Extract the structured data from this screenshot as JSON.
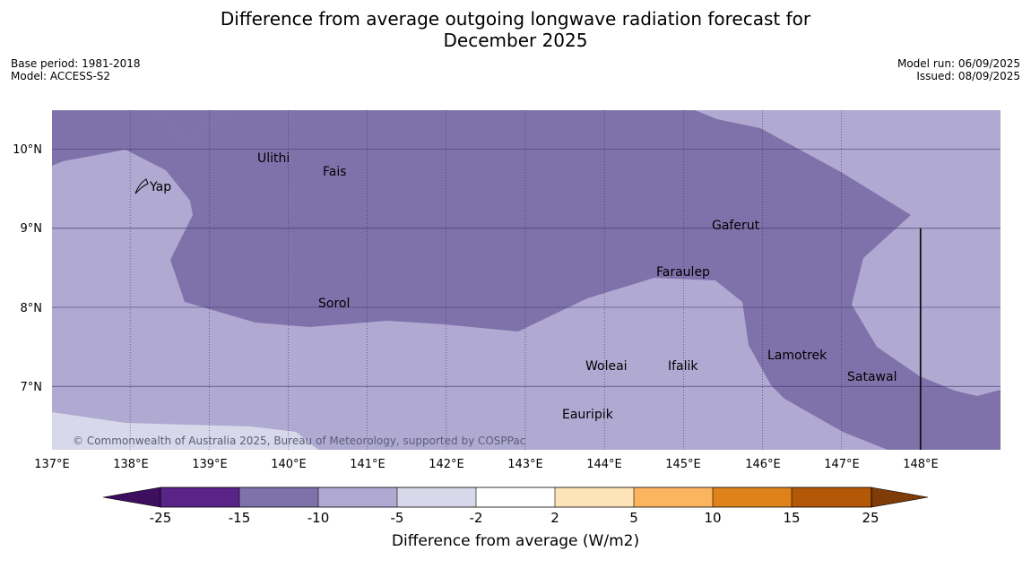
{
  "title": {
    "line1": "Difference from average outgoing longwave radiation forecast for",
    "line2": "December 2025"
  },
  "meta_left": {
    "base_period": "Base period: 1981-2018",
    "model": "Model: ACCESS-S2"
  },
  "meta_right": {
    "model_run": "Model run: 06/09/2025",
    "issued": "Issued: 08/09/2025"
  },
  "map": {
    "lon_range": [
      137,
      149
    ],
    "lat_range": [
      6.2,
      10.5
    ],
    "lon_ticks": [
      "137°E",
      "138°E",
      "139°E",
      "140°E",
      "141°E",
      "142°E",
      "143°E",
      "144°E",
      "145°E",
      "146°E",
      "147°E",
      "148°E"
    ],
    "lat_ticks": [
      "10°N",
      "9°N",
      "8°N",
      "7°N"
    ],
    "copyright": "© Commonwealth of Australia 2025, Bureau of Meteorology, supported by COSPPac",
    "places": [
      "Ulithi",
      "Fais",
      "Yap",
      "Gaferut",
      "Faraulep",
      "Sorol",
      "Lamotrek",
      "Satawal",
      "Woleai",
      "Ifalik",
      "Eauripik"
    ],
    "colors": {
      "band_-15_-10": "#7f72ab",
      "band_-10_-5": "#b0a9d1",
      "band_-5_-2": "#d7d8e9"
    }
  },
  "colorbar": {
    "title": "Difference from average (W/m2)",
    "ticks": [
      "-25",
      "-15",
      "-10",
      "-5",
      "-2",
      "2",
      "5",
      "10",
      "15",
      "25"
    ],
    "colors": [
      "#3d0f5e",
      "#5a2387",
      "#7f72ab",
      "#b0a9d1",
      "#d7d8e9",
      "#ffffff",
      "#fee2b8",
      "#fdb45f",
      "#e0821a",
      "#b35806",
      "#7f3b08"
    ]
  }
}
